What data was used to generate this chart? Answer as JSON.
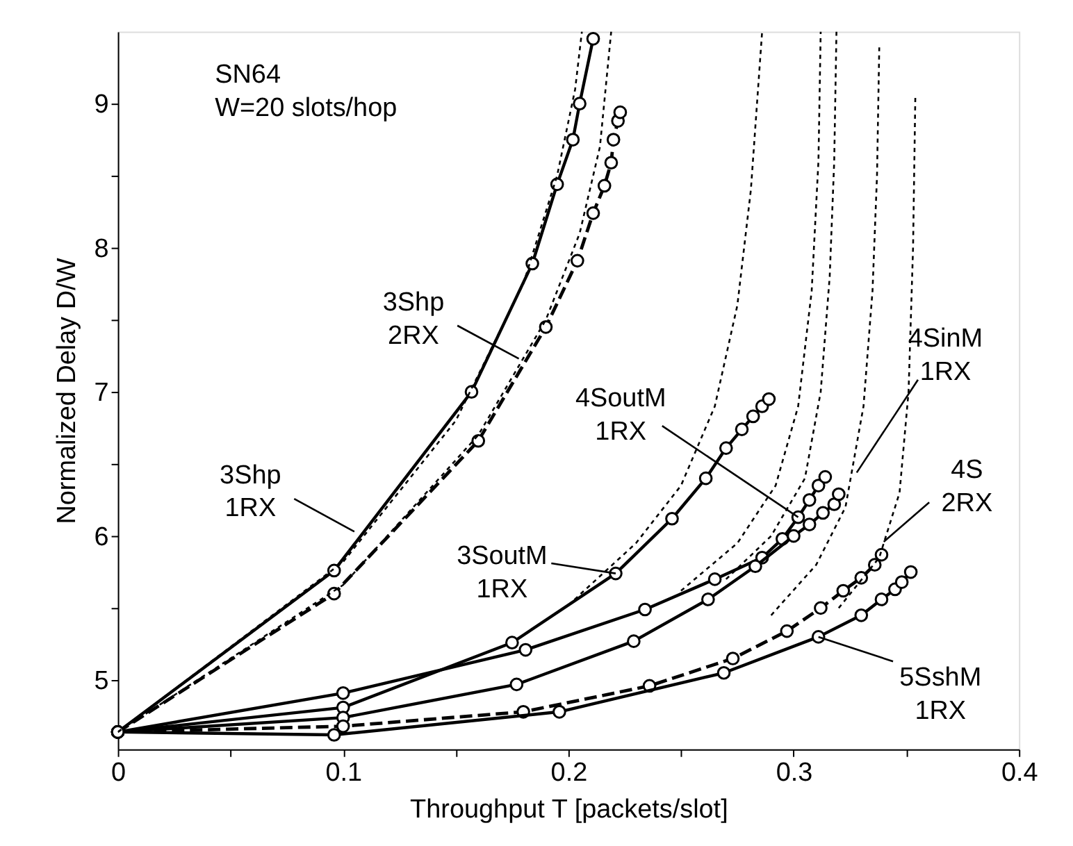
{
  "chart_data": {
    "type": "line",
    "xlabel": "Throughput  T [packets/slot]",
    "ylabel": "Normalized Delay D/W",
    "xlim": [
      0,
      0.4
    ],
    "ylim": [
      4.52,
      9.5
    ],
    "xticks": [
      0,
      {
        "value": 0.05,
        "label": null
      },
      0.1,
      {
        "value": 0.15,
        "label": null
      },
      0.2,
      {
        "value": 0.25,
        "label": null
      },
      0.3,
      {
        "value": 0.35,
        "label": null
      },
      0.4
    ],
    "yticks": [
      5,
      {
        "value": 5.5,
        "label": null
      },
      6,
      {
        "value": 6.5,
        "label": null
      },
      7,
      {
        "value": 7.5,
        "label": null
      },
      8,
      {
        "value": 8.5,
        "label": null
      },
      9
    ],
    "grid": false,
    "series": [
      {
        "color": "#000000",
        "line_style": "solid",
        "marker": "circle",
        "x": [
          0,
          0.096,
          0.157,
          0.184,
          0.195,
          0.202,
          0.205,
          0.211
        ],
        "values": [
          4.64,
          5.76,
          7.0,
          7.89,
          8.44,
          8.75,
          9.0,
          9.45
        ]
      },
      {
        "color": "#000000",
        "line_style": "dashed",
        "marker": "circle",
        "x": [
          0,
          0.096,
          0.16,
          0.19,
          0.204,
          0.211,
          0.216,
          0.219,
          0.22,
          0.222,
          0.223
        ],
        "values": [
          4.64,
          5.6,
          6.66,
          7.45,
          7.91,
          8.24,
          8.43,
          8.59,
          8.75,
          8.88,
          8.94
        ]
      },
      {
        "color": "#000000",
        "line_style": "solid",
        "marker": "circle",
        "x": [
          0,
          0.1,
          0.175,
          0.221,
          0.246,
          0.261,
          0.27,
          0.277,
          0.282,
          0.286,
          0.289
        ],
        "values": [
          4.64,
          4.81,
          5.26,
          5.74,
          6.12,
          6.4,
          6.61,
          6.74,
          6.83,
          6.9,
          6.95
        ]
      },
      {
        "color": "#000000",
        "line_style": "solid",
        "marker": "circle",
        "x": [
          0,
          0.1,
          0.181,
          0.234,
          0.265,
          0.286,
          0.295,
          0.302,
          0.307,
          0.311,
          0.314
        ],
        "values": [
          4.64,
          4.91,
          5.21,
          5.49,
          5.7,
          5.85,
          5.98,
          6.13,
          6.25,
          6.35,
          6.41
        ]
      },
      {
        "color": "#000000",
        "line_style": "solid",
        "marker": "circle",
        "x": [
          0,
          0.1,
          0.177,
          0.229,
          0.262,
          0.283,
          0.3,
          0.307,
          0.313,
          0.318,
          0.32
        ],
        "values": [
          4.64,
          4.74,
          4.97,
          5.27,
          5.56,
          5.79,
          6.0,
          6.08,
          6.16,
          6.22,
          6.29
        ]
      },
      {
        "color": "#000000",
        "line_style": "dashed",
        "marker": "circle",
        "x": [
          0,
          0.1,
          0.18,
          0.236,
          0.273,
          0.297,
          0.312,
          0.322,
          0.33,
          0.336,
          0.339
        ],
        "values": [
          4.64,
          4.68,
          4.78,
          4.96,
          5.15,
          5.34,
          5.5,
          5.62,
          5.71,
          5.8,
          5.87
        ]
      },
      {
        "color": "#000000",
        "line_style": "solid",
        "marker": "circle",
        "x": [
          0,
          0.096,
          0.196,
          0.269,
          0.311,
          0.33,
          0.339,
          0.345,
          0.348,
          0.352
        ],
        "values": [
          4.64,
          4.62,
          4.78,
          5.05,
          5.3,
          5.45,
          5.56,
          5.63,
          5.68,
          5.75
        ]
      },
      {
        "color": "#000000",
        "line_style": "dotted",
        "marker": "none",
        "x": [
          0,
          0.1,
          0.15,
          0.18,
          0.195,
          0.203,
          0.206
        ],
        "values": [
          4.64,
          5.82,
          6.8,
          7.75,
          8.5,
          9.1,
          9.5
        ]
      },
      {
        "color": "#000000",
        "line_style": "dotted",
        "marker": "none",
        "x": [
          0,
          0.1,
          0.16,
          0.19,
          0.205,
          0.214,
          0.219
        ],
        "values": [
          4.64,
          5.66,
          6.7,
          7.5,
          8.1,
          8.7,
          9.5
        ]
      },
      {
        "color": "#000000",
        "line_style": "dotted",
        "marker": "none",
        "x": [
          0.2,
          0.23,
          0.25,
          0.265,
          0.275,
          0.281,
          0.286
        ],
        "values": [
          5.52,
          5.95,
          6.35,
          6.9,
          7.6,
          8.4,
          9.5
        ]
      },
      {
        "color": "#000000",
        "line_style": "dotted",
        "marker": "none",
        "x": [
          0.25,
          0.275,
          0.292,
          0.302,
          0.308,
          0.311,
          0.312
        ],
        "values": [
          5.62,
          5.95,
          6.35,
          6.9,
          7.7,
          8.6,
          9.5
        ]
      },
      {
        "color": "#000000",
        "line_style": "dotted",
        "marker": "none",
        "x": [
          0.27,
          0.29,
          0.305,
          0.312,
          0.316,
          0.318,
          0.319
        ],
        "values": [
          5.7,
          6.0,
          6.4,
          7.0,
          7.8,
          8.6,
          9.5
        ]
      },
      {
        "color": "#000000",
        "line_style": "dotted",
        "marker": "none",
        "x": [
          0.29,
          0.31,
          0.323,
          0.331,
          0.335,
          0.337,
          0.338
        ],
        "values": [
          5.45,
          5.8,
          6.2,
          6.9,
          7.7,
          8.5,
          9.39
        ]
      },
      {
        "color": "#000000",
        "line_style": "dotted",
        "marker": "none",
        "x": [
          0.32,
          0.338,
          0.347,
          0.351,
          0.353,
          0.354
        ],
        "values": [
          5.5,
          5.85,
          6.3,
          7.0,
          8.0,
          9.04
        ]
      }
    ],
    "annotations": [
      "SN64",
      "W=20 slots/hop",
      {
        "text": "3Shp\n2RX",
        "x": 0.178,
        "y": 7.23
      },
      {
        "text": "3Shp\n1RX",
        "x": 0.105,
        "y": 6.03
      },
      {
        "text": "4SoutM\n1RX",
        "x": 0.302,
        "y": 6.13
      },
      {
        "text": "3SoutM\n1RX",
        "x": 0.221,
        "y": 5.74
      },
      {
        "text": "4SinM\n1RX",
        "x": 0.328,
        "y": 6.44
      },
      {
        "text": "4S\n2RX",
        "x": 0.34,
        "y": 5.96
      },
      {
        "text": "5SshM\n1RX",
        "x": 0.311,
        "y": 5.3
      }
    ]
  }
}
